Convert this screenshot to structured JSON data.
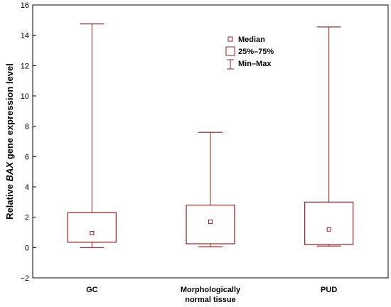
{
  "chart_data": {
    "type": "box",
    "ylabel": {
      "before": "Relative ",
      "gene": "BAX",
      "after": " gene expression level"
    },
    "ylim": [
      -2,
      16
    ],
    "yticks": [
      -2,
      0,
      2,
      4,
      6,
      8,
      10,
      12,
      14,
      16
    ],
    "ytick_labels": [
      "−2",
      "0",
      "2",
      "4",
      "6",
      "8",
      "10",
      "12",
      "14",
      "16"
    ],
    "grid": false,
    "legend_position": "top-center",
    "legend": {
      "median": "Median",
      "iqr": "25%–75%",
      "range": "Min–Max"
    },
    "color": "#9b1c1c",
    "categories": [
      {
        "label_lines": [
          "GC"
        ],
        "min": 0.0,
        "q1": 0.35,
        "median": 0.95,
        "q3": 2.3,
        "max": 14.75
      },
      {
        "label_lines": [
          "Morphologically",
          "normal tissue"
        ],
        "min": 0.05,
        "q1": 0.25,
        "median": 1.7,
        "q3": 2.8,
        "max": 7.6
      },
      {
        "label_lines": [
          "PUD"
        ],
        "min": 0.1,
        "q1": 0.2,
        "median": 1.2,
        "q3": 3.0,
        "max": 14.55
      }
    ]
  }
}
